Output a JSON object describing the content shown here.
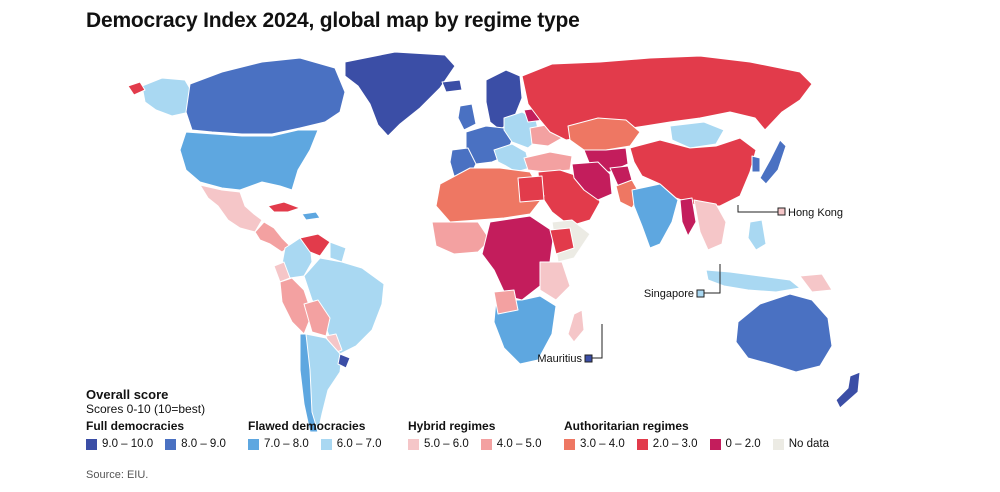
{
  "title": "Democracy Index 2024, global map by regime type",
  "labels": {
    "hong_kong": "Hong Kong",
    "singapore": "Singapore",
    "mauritius": "Mauritius"
  },
  "legend": {
    "title": "Overall score",
    "subtitle": "Scores 0-10 (10=best)",
    "groups": [
      {
        "name": "Full democracies",
        "items": [
          {
            "label": "9.0 – 10.0",
            "color": "#3b4ea6"
          },
          {
            "label": "8.0 – 9.0",
            "color": "#4a71c2"
          }
        ]
      },
      {
        "name": "Flawed democracies",
        "items": [
          {
            "label": "7.0 – 8.0",
            "color": "#5ea7e0"
          },
          {
            "label": "6.0 – 7.0",
            "color": "#a9d8f2"
          }
        ]
      },
      {
        "name": "Hybrid regimes",
        "items": [
          {
            "label": "5.0 – 6.0",
            "color": "#f5c6c8"
          },
          {
            "label": "4.0 – 5.0",
            "color": "#f3a1a1"
          }
        ]
      },
      {
        "name": "Authoritarian regimes",
        "items": [
          {
            "label": "3.0 – 4.0",
            "color": "#ee7763"
          },
          {
            "label": "2.0 – 3.0",
            "color": "#e23b4b"
          },
          {
            "label": "0 – 2.0",
            "color": "#c31d5c"
          },
          {
            "label": "No data",
            "color": "#ecebe4"
          }
        ]
      }
    ]
  },
  "source": "Source: EIU."
}
